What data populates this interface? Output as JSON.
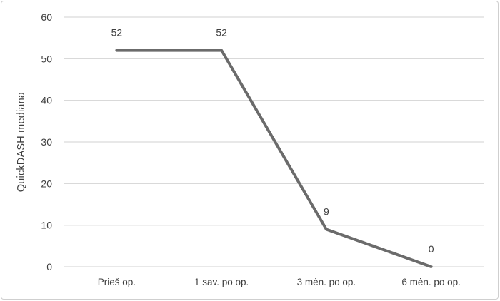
{
  "chart_data": {
    "type": "line",
    "title": "",
    "categories": [
      "Prieš op.",
      "1 sav. po op.",
      "3 mėn. po op.",
      "6 mėn. po op."
    ],
    "values": [
      52,
      52,
      9,
      0
    ],
    "data_labels": [
      "52",
      "52",
      "9",
      "0"
    ],
    "xlabel": "",
    "ylabel": "QuickDASH mediana",
    "ylim": [
      0,
      60
    ],
    "yticks": [
      0,
      10,
      20,
      30,
      40,
      50,
      60
    ],
    "grid": "horizontal-only",
    "legend": "none",
    "colors": {
      "series_line": "#6b6b6b",
      "gridline": "#d9d9d9",
      "text": "#3f3f3f",
      "frame_border": "#cfcfcf",
      "background": "#ffffff"
    }
  }
}
